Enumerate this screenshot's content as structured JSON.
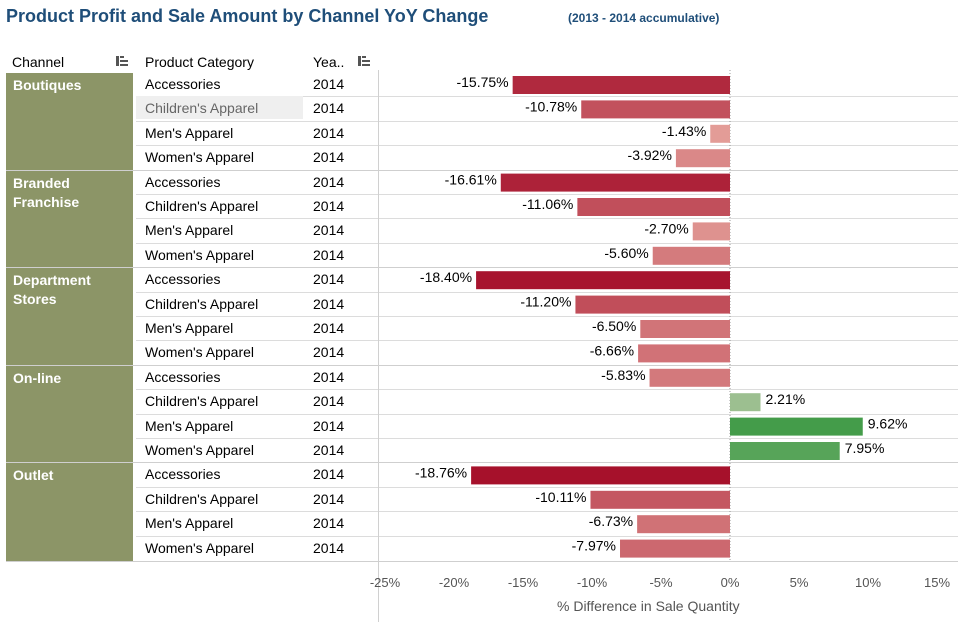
{
  "header": {
    "title": "Product Profit and Sale Amount by Channel YoY Change",
    "subtitle": "(2013 - 2014 accumulative)",
    "col_channel": "Channel",
    "col_category": "Product Category",
    "col_year": "Yea.."
  },
  "channels": [
    "Boutiques",
    "Branded Franchise",
    "Department Stores",
    "On-line",
    "Outlet"
  ],
  "colors": {
    "channel_bg": "#8c9567",
    "neg_strong": "#a50f2a",
    "neg_light": "#e8a8a0",
    "pos_light": "#b6c9a5",
    "pos_strong": "#3f9a46"
  },
  "chart_data": {
    "type": "bar",
    "orientation": "horizontal",
    "x_label": "% Difference in Sale Quantity",
    "x_ticks": [
      "-25%",
      "-20%",
      "-15%",
      "-10%",
      "-5%",
      "0%",
      "5%",
      "10%",
      "15%"
    ],
    "xlim": [
      -25,
      15
    ],
    "grid": false,
    "rows": [
      {
        "channel": "Boutiques",
        "category": "Accessories",
        "year": "2014",
        "value": -15.75,
        "label": "-15.75%"
      },
      {
        "channel": "Boutiques",
        "category": "Children's Apparel",
        "year": "2014",
        "value": -10.78,
        "label": "-10.78%"
      },
      {
        "channel": "Boutiques",
        "category": "Men's Apparel",
        "year": "2014",
        "value": -1.43,
        "label": "-1.43%"
      },
      {
        "channel": "Boutiques",
        "category": "Women's Apparel",
        "year": "2014",
        "value": -3.92,
        "label": "-3.92%"
      },
      {
        "channel": "Branded Franchise",
        "category": "Accessories",
        "year": "2014",
        "value": -16.61,
        "label": "-16.61%"
      },
      {
        "channel": "Branded Franchise",
        "category": "Children's Apparel",
        "year": "2014",
        "value": -11.06,
        "label": "-11.06%"
      },
      {
        "channel": "Branded Franchise",
        "category": "Men's Apparel",
        "year": "2014",
        "value": -2.7,
        "label": "-2.70%"
      },
      {
        "channel": "Branded Franchise",
        "category": "Women's Apparel",
        "year": "2014",
        "value": -5.6,
        "label": "-5.60%"
      },
      {
        "channel": "Department Stores",
        "category": "Accessories",
        "year": "2014",
        "value": -18.4,
        "label": "-18.40%"
      },
      {
        "channel": "Department Stores",
        "category": "Children's Apparel",
        "year": "2014",
        "value": -11.2,
        "label": "-11.20%"
      },
      {
        "channel": "Department Stores",
        "category": "Men's Apparel",
        "year": "2014",
        "value": -6.5,
        "label": "-6.50%"
      },
      {
        "channel": "Department Stores",
        "category": "Women's Apparel",
        "year": "2014",
        "value": -6.66,
        "label": "-6.66%"
      },
      {
        "channel": "On-line",
        "category": "Accessories",
        "year": "2014",
        "value": -5.83,
        "label": "-5.83%"
      },
      {
        "channel": "On-line",
        "category": "Children's Apparel",
        "year": "2014",
        "value": 2.21,
        "label": "2.21%"
      },
      {
        "channel": "On-line",
        "category": "Men's Apparel",
        "year": "2014",
        "value": 9.62,
        "label": "9.62%"
      },
      {
        "channel": "On-line",
        "category": "Women's Apparel",
        "year": "2014",
        "value": 7.95,
        "label": "7.95%"
      },
      {
        "channel": "Outlet",
        "category": "Accessories",
        "year": "2014",
        "value": -18.76,
        "label": "-18.76%"
      },
      {
        "channel": "Outlet",
        "category": "Children's Apparel",
        "year": "2014",
        "value": -10.11,
        "label": "-10.11%"
      },
      {
        "channel": "Outlet",
        "category": "Men's Apparel",
        "year": "2014",
        "value": -6.73,
        "label": "-6.73%"
      },
      {
        "channel": "Outlet",
        "category": "Women's Apparel",
        "year": "2014",
        "value": -7.97,
        "label": "-7.97%"
      }
    ]
  }
}
